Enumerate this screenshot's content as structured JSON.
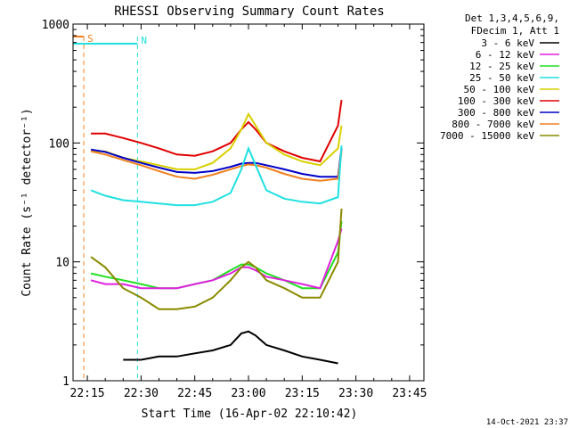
{
  "chart_data": {
    "type": "line",
    "title": "RHESSI Observing Summary Count Rates",
    "xlabel": "Start Time (16-Apr-02 22:10:42)",
    "ylabel": "Count Rate (s⁻¹ detector⁻¹)",
    "y_scale": "log",
    "ylim": [
      1,
      1000
    ],
    "xlim": [
      "22:11",
      "23:49"
    ],
    "x_ticks": [
      "22:15",
      "22:30",
      "22:45",
      "23:00",
      "23:15",
      "23:30",
      "23:45"
    ],
    "y_ticks": [
      "1",
      "10",
      "100",
      "1000"
    ],
    "grid": false,
    "timestamp": "14-Oct-2021 23:37",
    "legend": {
      "placement": "right",
      "header": [
        "Det 1,3,4,5,6,9,",
        "FDecim 1, Att 1"
      ],
      "entries": [
        {
          "label": "3 - 6 keV",
          "color": "#000000"
        },
        {
          "label": "6 - 12 keV",
          "color": "#e020e0"
        },
        {
          "label": "12 - 25 keV",
          "color": "#20e020"
        },
        {
          "label": "25 - 50 keV",
          "color": "#20e0e0"
        },
        {
          "label": "50 - 100 keV",
          "color": "#d8d000"
        },
        {
          "label": "100 - 300 keV",
          "color": "#e00000"
        },
        {
          "label": "300 - 800 keV",
          "color": "#0000c8"
        },
        {
          "label": "800 - 7000 keV",
          "color": "#f08020"
        },
        {
          "label": "7000 - 15000 keV",
          "color": "#8a8a00"
        }
      ]
    },
    "markers": [
      {
        "label": "S",
        "time": "22:14",
        "color": "#f08020"
      },
      {
        "label": "N",
        "time": "22:29",
        "color": "#20e0e0"
      }
    ],
    "series": [
      {
        "name": "100 - 300 keV",
        "color": "#e00000",
        "x": [
          "22:16",
          "22:20",
          "22:25",
          "22:30",
          "22:35",
          "22:40",
          "22:45",
          "22:50",
          "22:55",
          "22:58",
          "23:00",
          "23:02",
          "23:05",
          "23:10",
          "23:15",
          "23:20",
          "23:25",
          "23:26"
        ],
        "y": [
          120,
          120,
          110,
          100,
          90,
          80,
          78,
          85,
          100,
          130,
          150,
          130,
          100,
          85,
          75,
          70,
          140,
          230
        ]
      },
      {
        "name": "50 - 100 keV",
        "color": "#d8d000",
        "x": [
          "22:16",
          "22:20",
          "22:25",
          "22:30",
          "22:35",
          "22:40",
          "22:45",
          "22:50",
          "22:55",
          "22:58",
          "23:00",
          "23:02",
          "23:05",
          "23:10",
          "23:15",
          "23:20",
          "23:25",
          "23:26"
        ],
        "y": [
          85,
          85,
          75,
          70,
          65,
          60,
          60,
          68,
          90,
          130,
          175,
          140,
          100,
          80,
          70,
          65,
          90,
          140
        ]
      },
      {
        "name": "300 - 800 keV",
        "color": "#0000c8",
        "x": [
          "22:16",
          "22:20",
          "22:25",
          "22:30",
          "22:35",
          "22:40",
          "22:45",
          "22:50",
          "22:55",
          "22:58",
          "23:00",
          "23:02",
          "23:05",
          "23:10",
          "23:15",
          "23:20",
          "23:25",
          "23:26"
        ],
        "y": [
          88,
          84,
          75,
          68,
          62,
          57,
          56,
          58,
          63,
          67,
          68,
          68,
          65,
          60,
          55,
          52,
          52,
          90
        ]
      },
      {
        "name": "800 - 7000 keV",
        "color": "#f08020",
        "x": [
          "22:16",
          "22:20",
          "22:25",
          "22:30",
          "22:35",
          "22:40",
          "22:45",
          "22:50",
          "22:55",
          "22:58",
          "23:00",
          "23:02",
          "23:05",
          "23:10",
          "23:15",
          "23:20",
          "23:25",
          "23:26"
        ],
        "y": [
          85,
          80,
          72,
          65,
          58,
          52,
          50,
          54,
          60,
          64,
          66,
          65,
          62,
          55,
          50,
          48,
          50,
          85
        ]
      },
      {
        "name": "25 - 50 keV",
        "color": "#20e0e0",
        "x": [
          "22:16",
          "22:20",
          "22:25",
          "22:30",
          "22:35",
          "22:40",
          "22:45",
          "22:50",
          "22:55",
          "22:58",
          "23:00",
          "23:02",
          "23:05",
          "23:10",
          "23:15",
          "23:20",
          "23:25",
          "23:26"
        ],
        "y": [
          40,
          36,
          33,
          32,
          31,
          30,
          30,
          32,
          38,
          60,
          90,
          65,
          40,
          34,
          32,
          31,
          35,
          95
        ]
      },
      {
        "name": "12 - 25 keV",
        "color": "#20e020",
        "x": [
          "22:16",
          "22:20",
          "22:25",
          "22:30",
          "22:35",
          "22:40",
          "22:45",
          "22:50",
          "22:55",
          "22:58",
          "23:00",
          "23:02",
          "23:05",
          "23:10",
          "23:15",
          "23:20",
          "23:25",
          "23:26"
        ],
        "y": [
          8,
          7.5,
          7,
          6.5,
          6,
          6,
          6.5,
          7,
          8.5,
          9.5,
          9.5,
          9,
          8,
          7,
          6,
          6,
          12,
          22
        ]
      },
      {
        "name": "6 - 12 keV",
        "color": "#e020e0",
        "x": [
          "22:16",
          "22:20",
          "22:25",
          "22:30",
          "22:35",
          "22:40",
          "22:45",
          "22:50",
          "22:55",
          "22:58",
          "23:00",
          "23:02",
          "23:05",
          "23:10",
          "23:15",
          "23:20",
          "23:25",
          "23:26"
        ],
        "y": [
          7,
          6.5,
          6.5,
          6,
          6,
          6,
          6.5,
          7,
          8,
          9,
          9,
          8.5,
          7.5,
          7,
          6.5,
          6,
          15,
          19
        ]
      },
      {
        "name": "7000 - 15000 keV",
        "color": "#8a8a00",
        "x": [
          "22:16",
          "22:20",
          "22:25",
          "22:30",
          "22:35",
          "22:40",
          "22:45",
          "22:50",
          "22:55",
          "22:58",
          "23:00",
          "23:02",
          "23:05",
          "23:10",
          "23:15",
          "23:20",
          "23:25",
          "23:26"
        ],
        "y": [
          11,
          9,
          6,
          5,
          4,
          4,
          4.2,
          5,
          7,
          9,
          10,
          9,
          7,
          6,
          5,
          5,
          10,
          28
        ]
      },
      {
        "name": "3 - 6 keV",
        "color": "#000000",
        "x": [
          "22:25",
          "22:30",
          "22:35",
          "22:40",
          "22:45",
          "22:50",
          "22:55",
          "22:58",
          "23:00",
          "23:02",
          "23:05",
          "23:10",
          "23:15",
          "23:20",
          "23:25"
        ],
        "y": [
          1.5,
          1.5,
          1.6,
          1.6,
          1.7,
          1.8,
          2,
          2.5,
          2.6,
          2.4,
          2,
          1.8,
          1.6,
          1.5,
          1.4
        ]
      }
    ]
  }
}
